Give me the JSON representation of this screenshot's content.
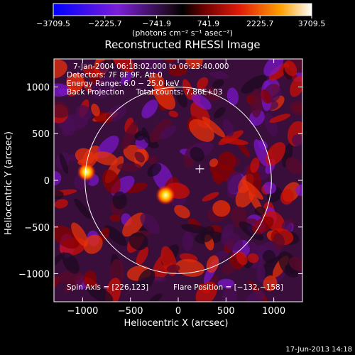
{
  "chart_data": {
    "type": "heatmap",
    "title": "Reconstructed RHESSI Image",
    "xlabel": "Heliocentric X (arcsec)",
    "ylabel": "Heliocentric Y (arcsec)",
    "xlim": [
      -1300,
      1300
    ],
    "ylim": [
      -1300,
      1300
    ],
    "x_ticks": [
      -1000,
      -500,
      0,
      500,
      1000
    ],
    "y_ticks": [
      1000,
      500,
      0,
      -500,
      -1000
    ],
    "x_tick_labels": [
      "−1000",
      "−500",
      "0",
      "500",
      "1000"
    ],
    "y_tick_labels": [
      "1000",
      "500",
      "0",
      "−500",
      "−1000"
    ],
    "colorbar": {
      "min": -3709.5,
      "max": 3709.5,
      "ticks": [
        "−3709.5",
        "−2225.7",
        "−741.9",
        "741.9",
        "2225.7",
        "3709.5"
      ],
      "unit": "(photons cm⁻² s⁻¹ asec⁻²)"
    },
    "annotations": [
      "7-Jan-2004 06:18:02.000 to 06:23:40.000",
      "Detectors: 7F 8F 9F, Att 0",
      "Energy Range: 6.0 − 25.0 keV",
      "Back Projection     Total counts: 7.86E+03"
    ],
    "footer_left": "Spin Axis = [226,123]",
    "footer_right": "Flare Position = [−132,−158]",
    "sources": [
      {
        "x": -132,
        "y": -158,
        "peak": 3709.5
      },
      {
        "x": -960,
        "y": 90,
        "peak": 3200
      }
    ],
    "solar_disk": {
      "center": [
        0,
        0
      ],
      "radius": 975
    },
    "spin_axis_marker": [
      226,
      123
    ]
  },
  "timestamp": "17-Jun-2013 14:18"
}
